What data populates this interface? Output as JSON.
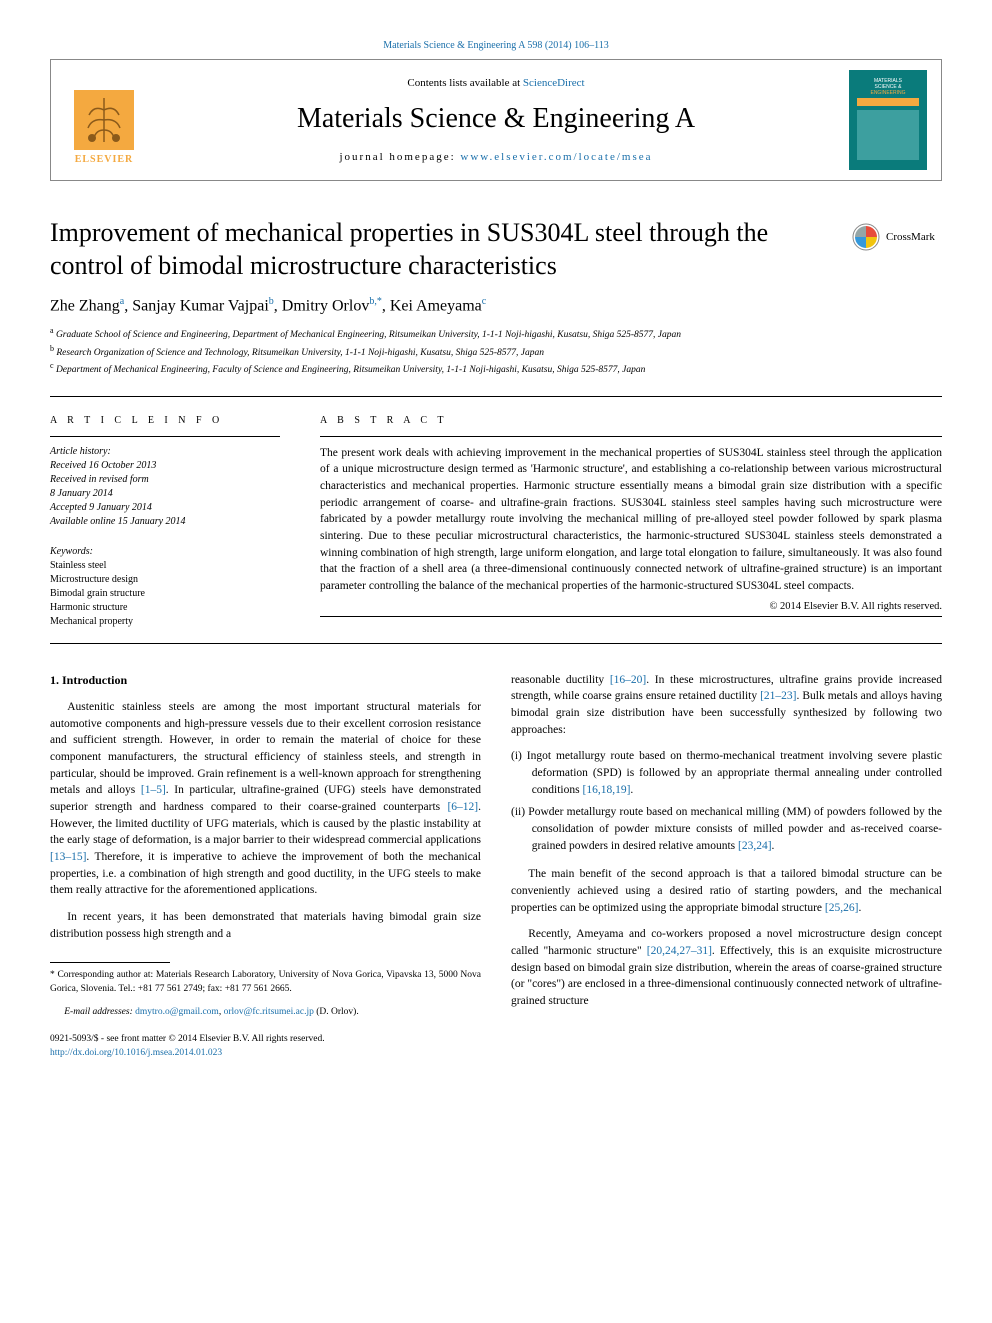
{
  "top_link": {
    "prefix": "",
    "text": "Materials Science & Engineering A 598 (2014) 106–113",
    "href": "#"
  },
  "header": {
    "contents_prefix": "Contents lists available at ",
    "contents_link": "ScienceDirect",
    "journal": "Materials Science & Engineering A",
    "homepage_prefix": "journal homepage: ",
    "homepage_link": "www.elsevier.com/locate/msea",
    "publisher": "ELSEVIER",
    "cover_colors": {
      "bg": "#0a7b7b",
      "accent": "#f4a940",
      "text": "#ffffff"
    }
  },
  "crossmark": {
    "label": "CrossMark"
  },
  "title": "Improvement of mechanical properties in SUS304L steel through the control of bimodal microstructure characteristics",
  "authors": [
    {
      "name": "Zhe Zhang",
      "aff": "a"
    },
    {
      "name": "Sanjay Kumar Vajpai",
      "aff": "b"
    },
    {
      "name": "Dmitry Orlov",
      "aff": "b,*"
    },
    {
      "name": "Kei Ameyama",
      "aff": "c"
    }
  ],
  "affiliations": [
    {
      "key": "a",
      "text": "Graduate School of Science and Engineering, Department of Mechanical Engineering, Ritsumeikan University, 1-1-1 Noji-higashi, Kusatsu, Shiga 525-8577, Japan"
    },
    {
      "key": "b",
      "text": "Research Organization of Science and Technology, Ritsumeikan University, 1-1-1 Noji-higashi, Kusatsu, Shiga 525-8577, Japan"
    },
    {
      "key": "c",
      "text": "Department of Mechanical Engineering, Faculty of Science and Engineering, Ritsumeikan University, 1-1-1 Noji-higashi, Kusatsu, Shiga 525-8577, Japan"
    }
  ],
  "article_info": {
    "heading": "A R T I C L E   I N F O",
    "history_label": "Article history:",
    "history": [
      "Received 16 October 2013",
      "Received in revised form",
      "8 January 2014",
      "Accepted 9 January 2014",
      "Available online 15 January 2014"
    ],
    "keywords_label": "Keywords:",
    "keywords": [
      "Stainless steel",
      "Microstructure design",
      "Bimodal grain structure",
      "Harmonic structure",
      "Mechanical property"
    ]
  },
  "abstract": {
    "heading": "A B S T R A C T",
    "text": "The present work deals with achieving improvement in the mechanical properties of SUS304L stainless steel through the application of a unique microstructure design termed as 'Harmonic structure', and establishing a co-relationship between various microstructural characteristics and mechanical properties. Harmonic structure essentially means a bimodal grain size distribution with a specific periodic arrangement of coarse- and ultrafine-grain fractions. SUS304L stainless steel samples having such microstructure were fabricated by a powder metallurgy route involving the mechanical milling of pre-alloyed steel powder followed by spark plasma sintering. Due to these peculiar microstructural characteristics, the harmonic-structured SUS304L stainless steels demonstrated a winning combination of high strength, large uniform elongation, and large total elongation to failure, simultaneously. It was also found that the fraction of a shell area (a three-dimensional continuously connected network of ultrafine-grained structure) is an important parameter controlling the balance of the mechanical properties of the harmonic-structured SUS304L steel compacts.",
    "copyright": "© 2014 Elsevier B.V. All rights reserved."
  },
  "body": {
    "intro_heading": "1.  Introduction",
    "left_paras": [
      "Austenitic stainless steels are among the most important structural materials for automotive components and high-pressure vessels due to their excellent corrosion resistance and sufficient strength. However, in order to remain the material of choice for these component manufacturers, the structural efficiency of stainless steels, and strength in particular, should be improved. Grain refinement is a well-known approach for strengthening metals and alloys [1–5]. In particular, ultrafine-grained (UFG) steels have demonstrated superior strength and hardness compared to their coarse-grained counterparts [6–12]. However, the limited ductility of UFG materials, which is caused by the plastic instability at the early stage of deformation, is a major barrier to their widespread commercial applications [13–15]. Therefore, it is imperative to achieve the improvement of both the mechanical properties, i.e. a combination of high strength and good ductility, in the UFG steels to make them really attractive for the aforementioned applications.",
      "In recent years, it has been demonstrated that materials having bimodal grain size distribution possess high strength and a"
    ],
    "right_para1": "reasonable ductility [16–20]. In these microstructures, ultrafine grains provide increased strength, while coarse grains ensure retained ductility [21–23]. Bulk metals and alloys having bimodal grain size distribution have been successfully synthesized by following two approaches:",
    "list": [
      "(i) Ingot metallurgy route based on thermo-mechanical treatment involving severe plastic deformation (SPD) is followed by an appropriate thermal annealing under controlled conditions [16,18,19].",
      "(ii) Powder metallurgy route based on mechanical milling (MM) of powders followed by the consolidation of powder mixture consists of milled powder and as-received coarse-grained powders in desired relative amounts [23,24]."
    ],
    "right_para2": "The main benefit of the second approach is that a tailored bimodal structure can be conveniently achieved using a desired ratio of starting powders, and the mechanical properties can be optimized using the appropriate bimodal structure [25,26].",
    "right_para3": "Recently, Ameyama and co-workers proposed a novel microstructure design concept called \"harmonic structure\" [20,24,27–31]. Effectively, this is an exquisite microstructure design based on bimodal grain size distribution, wherein the areas of coarse-grained structure (or \"cores\") are enclosed in a three-dimensional continuously connected network of ultrafine-grained structure",
    "refs_in_text": [
      "[1–5]",
      "[6–12]",
      "[13–15]",
      "[16–20]",
      "[21–23]",
      "[16,18,19]",
      "[23,24]",
      "[25,26]",
      "[20,24,27–31]"
    ]
  },
  "footnote": {
    "corr_marker": "* ",
    "corr_text": "Corresponding author at: Materials Research Laboratory, University of Nova Gorica, Vipavska 13, 5000 Nova Gorica, Slovenia. Tel.: +81 77 561 2749; fax: +81 77 561 2665.",
    "email_label": "E-mail addresses: ",
    "email1": "dmytro.o@gmail.com",
    "email_sep": ", ",
    "email2": "orlov@fc.ritsumei.ac.jp",
    "email_suffix": " (D. Orlov)."
  },
  "footer": {
    "issn": "0921-5093/$ - see front matter © 2014 Elsevier B.V. All rights reserved.",
    "doi": "http://dx.doi.org/10.1016/j.msea.2014.01.023"
  },
  "colors": {
    "link": "#1a6faa",
    "elsevier": "#f4a940",
    "cover_bg": "#0a7b7b"
  }
}
